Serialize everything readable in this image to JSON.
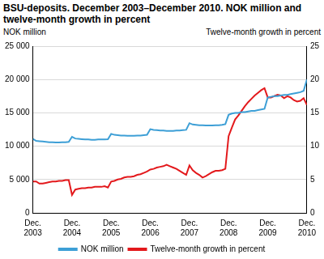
{
  "chart_data": {
    "type": "line",
    "title": "BSU-deposits.  December 2003–December 2010. NOK million and twelve-month growth in percent",
    "y_label": "NOK million",
    "y2_label": "Twelve-month growth in percent",
    "categories": [
      "Dec. 2003",
      null,
      null,
      null,
      null,
      null,
      null,
      null,
      null,
      null,
      null,
      null,
      "Dec. 2004",
      null,
      null,
      null,
      null,
      null,
      null,
      null,
      null,
      null,
      null,
      null,
      "Dec. 2005",
      null,
      null,
      null,
      null,
      null,
      null,
      null,
      null,
      null,
      null,
      null,
      "Dec. 2006",
      null,
      null,
      null,
      null,
      null,
      null,
      null,
      null,
      null,
      null,
      null,
      "Dec. 2007",
      null,
      null,
      null,
      null,
      null,
      null,
      null,
      null,
      null,
      null,
      null,
      "Dec. 2008",
      null,
      null,
      null,
      null,
      null,
      null,
      null,
      null,
      null,
      null,
      null,
      "Dec. 2009",
      null,
      null,
      null,
      null,
      null,
      null,
      null,
      null,
      null,
      null,
      null,
      "Dec. 2010"
    ],
    "series": [
      {
        "name": "NOK million",
        "color": "#3d9fd6",
        "axis": "y",
        "values": [
          11100,
          10800,
          10750,
          10700,
          10650,
          10600,
          10600,
          10550,
          10550,
          10600,
          10600,
          10650,
          11400,
          11150,
          11100,
          11050,
          11000,
          11000,
          10950,
          10950,
          11000,
          11000,
          11000,
          11050,
          11850,
          11700,
          11650,
          11600,
          11600,
          11550,
          11550,
          11550,
          11600,
          11600,
          11650,
          11700,
          12550,
          12450,
          12400,
          12350,
          12350,
          12300,
          12300,
          12300,
          12350,
          12350,
          12400,
          12450,
          13450,
          13250,
          13200,
          13150,
          13150,
          13100,
          13100,
          13100,
          13150,
          13150,
          13200,
          13300,
          14700,
          14900,
          15000,
          15000,
          15100,
          15100,
          15200,
          15300,
          15300,
          15400,
          15500,
          15600,
          17300,
          17400,
          17500,
          17500,
          17600,
          17700,
          17700,
          17800,
          17900,
          18000,
          18100,
          18300,
          20000
        ]
      },
      {
        "name": "Twelve-month growth in percent",
        "color": "#e3191c",
        "axis": "y2",
        "values": [
          4.7,
          4.7,
          4.4,
          4.4,
          4.5,
          4.6,
          4.7,
          4.7,
          4.8,
          4.8,
          4.9,
          4.9,
          2.7,
          3.5,
          3.6,
          3.7,
          3.7,
          3.8,
          3.8,
          3.9,
          3.9,
          3.9,
          4.0,
          3.8,
          4.7,
          4.8,
          5.0,
          5.1,
          5.3,
          5.4,
          5.4,
          5.5,
          5.7,
          5.8,
          6.0,
          6.2,
          6.5,
          6.6,
          6.8,
          6.9,
          7.0,
          7.2,
          7.0,
          6.8,
          6.6,
          6.3,
          6.0,
          5.7,
          7.1,
          6.4,
          6.0,
          5.7,
          5.3,
          5.5,
          5.8,
          6.1,
          6.3,
          6.3,
          6.4,
          6.6,
          11.5,
          12.8,
          14.0,
          14.6,
          15.3,
          16.0,
          16.6,
          17.1,
          17.6,
          18.0,
          18.4,
          18.7,
          17.3,
          17.3,
          17.5,
          17.7,
          17.6,
          17.2,
          17.5,
          17.3,
          16.9,
          16.7,
          16.8,
          17.2,
          16.2
        ]
      }
    ],
    "ylim": [
      0,
      25000
    ],
    "yticks": [
      0,
      {
        "value": 5000,
        "label": "5 000"
      },
      {
        "value": 10000,
        "label": "10 000"
      },
      {
        "value": 15000,
        "label": "15 000"
      },
      {
        "value": 20000,
        "label": "20 000"
      },
      {
        "value": 25000,
        "label": "25 000"
      }
    ],
    "y2lim": [
      0,
      25
    ],
    "y2ticks": [
      0,
      5,
      10,
      15,
      20,
      25
    ],
    "grid": true,
    "legend": "bottom"
  }
}
